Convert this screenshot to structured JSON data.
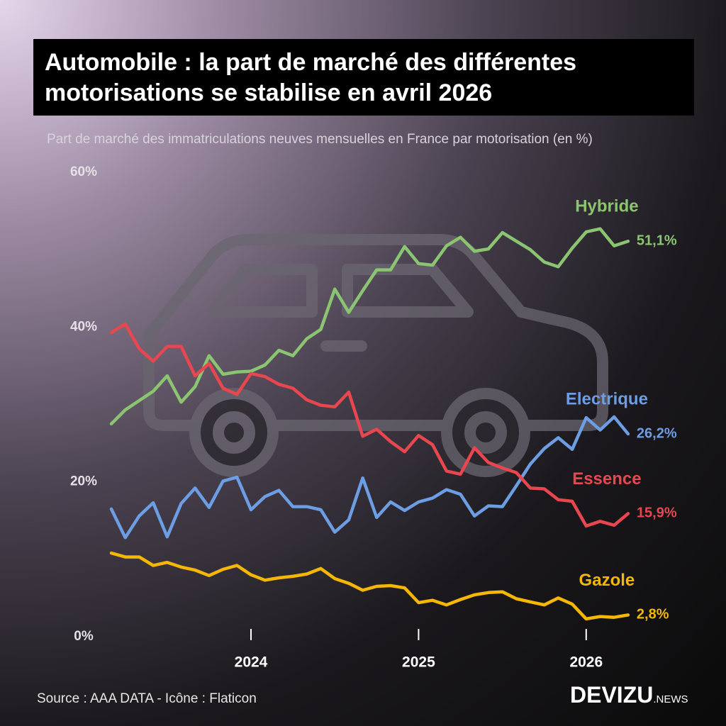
{
  "chart_data": {
    "type": "line",
    "title": "Automobile : la part de marché des différentes motorisations se stabilise en avril 2026",
    "subtitle": "Part de marché des immatriculations neuves mensuelles en France par motorisation (en %)",
    "source": "Source : AAA DATA - Icône : Flaticon",
    "brand": "DEVIZU",
    "brand_suffix": ".NEWS",
    "categories": [
      null,
      null,
      null,
      null,
      null,
      null,
      null,
      null,
      null,
      null,
      "2024",
      null,
      null,
      null,
      null,
      null,
      null,
      null,
      null,
      null,
      null,
      null,
      "2025",
      null,
      null,
      null,
      null,
      null,
      null,
      null,
      null,
      null,
      null,
      null,
      "2026",
      null,
      null,
      null
    ],
    "ylim": [
      0,
      60
    ],
    "yticks": [
      {
        "value": 0,
        "label": "0%"
      },
      {
        "value": 20,
        "label": "20%"
      },
      {
        "value": 40,
        "label": "40%"
      },
      {
        "value": 60,
        "label": "60%"
      }
    ],
    "series": [
      {
        "name": "Hybride",
        "color": "#8cc571",
        "values": [
          27.5,
          29.3,
          30.5,
          31.7,
          33.7,
          30.3,
          32.3,
          36.3,
          33.9,
          34.2,
          34.3,
          35.1,
          37.0,
          36.3,
          38.5,
          39.7,
          44.9,
          41.9,
          44.7,
          47.4,
          47.4,
          50.4,
          48.2,
          48.0,
          50.5,
          51.6,
          49.8,
          50.1,
          52.2,
          51.1,
          50.0,
          48.4,
          47.8,
          50.2,
          52.3,
          52.7,
          50.5,
          51.1
        ],
        "value_labels": [
          null,
          null,
          null,
          null,
          null,
          null,
          null,
          null,
          null,
          null,
          null,
          null,
          null,
          null,
          null,
          null,
          null,
          null,
          null,
          null,
          null,
          null,
          null,
          null,
          null,
          null,
          null,
          null,
          null,
          null,
          null,
          null,
          null,
          null,
          null,
          null,
          null,
          "51,1%"
        ]
      },
      {
        "name": "Electrique",
        "color": "#6d9de3",
        "values": [
          16.5,
          12.8,
          15.6,
          17.3,
          12.9,
          17.2,
          19.2,
          16.7,
          20.1,
          20.6,
          16.4,
          18.1,
          18.9,
          16.8,
          16.8,
          16.4,
          13.5,
          15.1,
          20.5,
          15.4,
          17.4,
          16.3,
          17.4,
          17.9,
          19.0,
          18.4,
          15.6,
          16.9,
          16.8,
          19.5,
          22.3,
          24.3,
          25.7,
          24.2,
          28.3,
          26.7,
          28.4,
          26.2
        ],
        "value_labels": [
          null,
          null,
          null,
          null,
          null,
          null,
          null,
          null,
          null,
          null,
          null,
          null,
          null,
          null,
          null,
          null,
          null,
          null,
          null,
          null,
          null,
          null,
          null,
          null,
          null,
          null,
          null,
          null,
          null,
          null,
          null,
          null,
          null,
          null,
          null,
          null,
          null,
          "26,2%"
        ]
      },
      {
        "name": "Essence",
        "color": "#e8474f",
        "values": [
          39.3,
          40.4,
          37.2,
          35.6,
          37.5,
          37.5,
          33.7,
          35.3,
          32.1,
          31.3,
          34.0,
          33.6,
          32.6,
          32.1,
          30.6,
          29.9,
          29.7,
          31.6,
          25.9,
          26.8,
          25.2,
          23.9,
          26.0,
          24.8,
          21.4,
          21.0,
          24.4,
          22.5,
          21.8,
          21.2,
          19.2,
          19.1,
          17.7,
          17.5,
          14.3,
          14.9,
          14.4,
          15.9
        ],
        "value_labels": [
          null,
          null,
          null,
          null,
          null,
          null,
          null,
          null,
          null,
          null,
          null,
          null,
          null,
          null,
          null,
          null,
          null,
          null,
          null,
          null,
          null,
          null,
          null,
          null,
          null,
          null,
          null,
          null,
          null,
          null,
          null,
          null,
          null,
          null,
          null,
          null,
          null,
          "15,9%"
        ]
      },
      {
        "name": "Gazole",
        "color": "#f5b705",
        "values": [
          10.8,
          10.3,
          10.3,
          9.2,
          9.6,
          9.0,
          8.6,
          7.9,
          8.7,
          9.2,
          8.0,
          7.3,
          7.6,
          7.8,
          8.1,
          8.8,
          7.5,
          6.9,
          6.0,
          6.5,
          6.6,
          6.3,
          4.4,
          4.7,
          4.1,
          4.8,
          5.4,
          5.7,
          5.8,
          4.9,
          4.5,
          4.1,
          5.0,
          4.2,
          2.3,
          2.6,
          2.5,
          2.8
        ],
        "value_labels": [
          null,
          null,
          null,
          null,
          null,
          null,
          null,
          null,
          null,
          null,
          null,
          null,
          null,
          null,
          null,
          null,
          null,
          null,
          null,
          null,
          null,
          null,
          null,
          null,
          null,
          null,
          null,
          null,
          null,
          null,
          null,
          null,
          null,
          null,
          null,
          null,
          null,
          "2,8%"
        ]
      }
    ]
  }
}
